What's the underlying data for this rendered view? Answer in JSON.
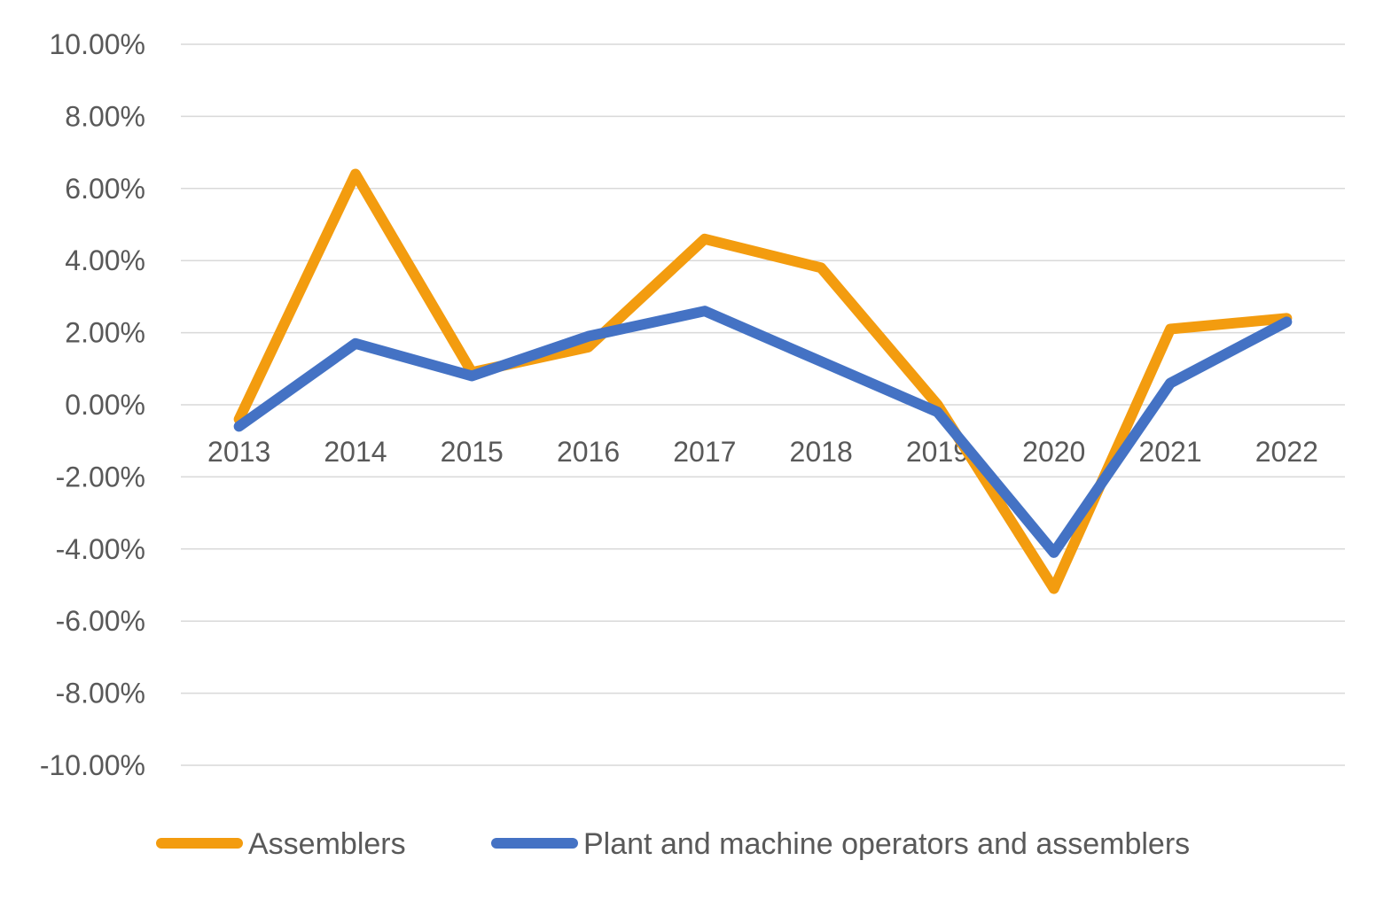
{
  "chart_data": {
    "type": "line",
    "title": "",
    "xlabel": "",
    "ylabel": "",
    "categories": [
      "2013",
      "2014",
      "2015",
      "2016",
      "2017",
      "2018",
      "2019",
      "2020",
      "2021",
      "2022"
    ],
    "yticks": [
      10,
      8,
      6,
      4,
      2,
      0,
      -2,
      -4,
      -6,
      -8,
      -10
    ],
    "ytick_labels": [
      "10.00%",
      "8.00%",
      "6.00%",
      "4.00%",
      "2.00%",
      "0.00%",
      "-2.00%",
      "-4.00%",
      "-6.00%",
      "-8.00%",
      "-10.00%"
    ],
    "ylim": [
      -10,
      10
    ],
    "grid": true,
    "legend_position": "bottom",
    "series": [
      {
        "name": "Assemblers",
        "color": "#F39C0F",
        "values": [
          -0.4,
          6.4,
          0.9,
          1.6,
          4.6,
          3.8,
          0.0,
          -5.1,
          2.1,
          2.4
        ]
      },
      {
        "name": "Plant and machine operators and assemblers",
        "color": "#4472C4",
        "values": [
          -0.6,
          1.7,
          0.8,
          1.9,
          2.6,
          1.2,
          -0.2,
          -4.1,
          0.6,
          2.3
        ]
      }
    ]
  }
}
